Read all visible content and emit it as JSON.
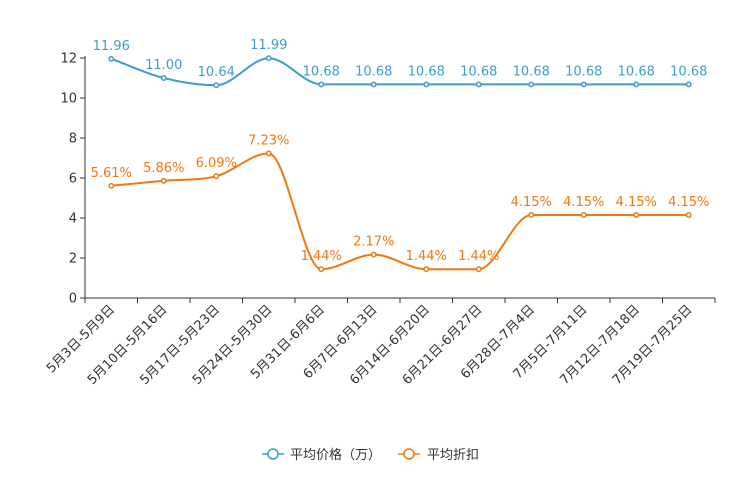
{
  "chart_data": {
    "type": "line",
    "categories": [
      "5月3日-5月9日",
      "5月10日-5月16日",
      "5月17日-5月23日",
      "5月24日-5月30日",
      "5月31日-6月6日",
      "6月7日-6月13日",
      "6月14日-6月20日",
      "6月21日-6月27日",
      "6月28日-7月4日",
      "7月5日-7月11日",
      "7月12日-7月18日",
      "7月19日-7月25日"
    ],
    "ylim": [
      0,
      12
    ],
    "yticks": [
      "0",
      "2",
      "4",
      "6",
      "8",
      "10",
      "12"
    ],
    "series": [
      {
        "name": "平均价格（万）",
        "color": "#3e9ccb",
        "values": [
          11.96,
          11.0,
          10.64,
          11.99,
          10.68,
          10.68,
          10.68,
          10.68,
          10.68,
          10.68,
          10.68,
          10.68
        ],
        "labels": [
          "11.96",
          "11.00",
          "10.64",
          "11.99",
          "10.68",
          "10.68",
          "10.68",
          "10.68",
          "10.68",
          "10.68",
          "10.68",
          "10.68"
        ]
      },
      {
        "name": "平均折扣",
        "color": "#f07810",
        "values": [
          5.61,
          5.86,
          6.09,
          7.23,
          1.44,
          2.17,
          1.44,
          1.44,
          4.15,
          4.15,
          4.15,
          4.15
        ],
        "labels": [
          "5.61%",
          "5.86%",
          "6.09%",
          "7.23%",
          "1.44%",
          "2.17%",
          "1.44%",
          "1.44%",
          "4.15%",
          "4.15%",
          "4.15%",
          "4.15%"
        ]
      }
    ],
    "legend_position": "bottom-center"
  }
}
